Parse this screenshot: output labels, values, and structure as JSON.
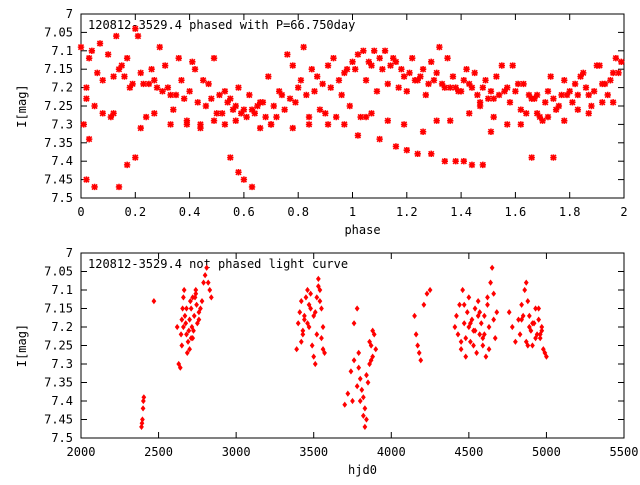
{
  "chart_data": [
    {
      "type": "scatter",
      "title": "120812-3529.4 phased with P=66.750day",
      "xlabel": "phase",
      "ylabel": "I[mag]",
      "xlim": [
        0,
        2
      ],
      "ylim": [
        7.5,
        7
      ],
      "y_inverted": true,
      "xticks": [
        0,
        0.2,
        0.4,
        0.6,
        0.8,
        1,
        1.2,
        1.4,
        1.6,
        1.8,
        2
      ],
      "xtick_labels": [
        "0",
        "0.2",
        "0.4",
        "0.6",
        "0.8",
        "1",
        "1.2",
        "1.4",
        "1.6",
        "1.8",
        "2"
      ],
      "yticks": [
        7,
        7.05,
        7.1,
        7.15,
        7.2,
        7.25,
        7.3,
        7.35,
        7.4,
        7.45,
        7.5
      ],
      "ytick_labels": [
        "7",
        "7.05",
        "7.1",
        "7.15",
        "7.2",
        "7.25",
        "7.3",
        "7.35",
        "7.4",
        "7.45",
        "7.5"
      ],
      "grid": false,
      "marker": "star",
      "color": "#ff0000",
      "series": [
        {
          "x": [
            0.0,
            0.02,
            0.04,
            0.06,
            0.1,
            0.14,
            0.16,
            0.19,
            0.21,
            0.23,
            0.25,
            0.28,
            0.3,
            0.33,
            0.36,
            0.38,
            0.4,
            0.43,
            0.46,
            0.48,
            0.51,
            0.54,
            0.57,
            0.6,
            0.63,
            0.66,
            0.68,
            0.71,
            0.74,
            0.77,
            0.8,
            0.83,
            0.86,
            0.89,
            0.92,
            0.95,
            0.98,
            1.0,
            1.02,
            1.04,
            1.06,
            1.1,
            1.14,
            1.16,
            1.19,
            1.21,
            1.23,
            1.25,
            1.28,
            1.3,
            1.33,
            1.36,
            1.38,
            1.4,
            1.43,
            1.46,
            1.48,
            1.51,
            1.54,
            1.57,
            1.6,
            1.63,
            1.66,
            1.68,
            1.71,
            1.74,
            1.77,
            1.8,
            1.83,
            1.86,
            1.89,
            1.92,
            1.95,
            1.98,
            0.01,
            0.03,
            0.05,
            0.08,
            0.11,
            0.13,
            0.15,
            0.18,
            0.2,
            0.22,
            0.24,
            0.27,
            0.29,
            0.31,
            0.34,
            0.37,
            0.39,
            0.42,
            0.44,
            0.47,
            0.49,
            0.52,
            0.55,
            0.58,
            0.61,
            0.64,
            0.67,
            0.7,
            0.72,
            0.75,
            0.78,
            0.81,
            0.84,
            0.87,
            0.9,
            0.93,
            0.96,
            0.99,
            1.01,
            1.03,
            1.05,
            1.08,
            1.11,
            1.13,
            1.15,
            1.18,
            1.2,
            1.22,
            1.24,
            1.27,
            1.29,
            1.31,
            1.34,
            1.37,
            1.39,
            1.42,
            1.44,
            1.47,
            1.49,
            1.52,
            1.55,
            1.58,
            1.61,
            1.64,
            1.67,
            1.7,
            1.72,
            1.75,
            1.78,
            1.81,
            1.84,
            1.87,
            1.9,
            1.93,
            1.96,
            1.99,
            0.02,
            0.07,
            0.12,
            0.17,
            0.26,
            0.32,
            0.35,
            0.41,
            0.45,
            0.5,
            0.53,
            0.56,
            0.59,
            0.62,
            0.65,
            0.69,
            0.73,
            0.76,
            0.79,
            0.82,
            0.85,
            0.88,
            0.91,
            0.94,
            0.97,
            1.07,
            1.09,
            1.12,
            1.17,
            1.26,
            1.32,
            1.35,
            1.41,
            1.45,
            1.5,
            1.53,
            1.56,
            1.59,
            1.62,
            1.65,
            1.69,
            1.73,
            1.76,
            1.79,
            1.82,
            1.85,
            1.88,
            1.91,
            1.94,
            1.97,
            0.02,
            0.03,
            0.05,
            0.14,
            0.17,
            0.2,
            0.55,
            0.58,
            0.6,
            0.63,
            1.02,
            1.05,
            1.1,
            1.16,
            1.2,
            1.24,
            1.29,
            1.34,
            1.38,
            1.41,
            1.44,
            1.48,
            1.51,
            1.66,
            1.74,
            0.08,
            0.12,
            0.22,
            0.27,
            0.33,
            0.39,
            0.44,
            0.49,
            0.53,
            0.57,
            0.66,
            0.7,
            0.78,
            0.84,
            0.91,
            0.97,
            1.07,
            1.13,
            1.19,
            1.26,
            1.31,
            1.36,
            1.43,
            1.47,
            1.52,
            1.57,
            1.62,
            1.68,
            1.72,
            1.78,
            1.83,
            1.87,
            1.92,
            1.96
          ],
          "y": [
            7.09,
            7.2,
            7.1,
            7.16,
            7.11,
            7.15,
            7.17,
            7.19,
            7.06,
            7.19,
            7.19,
            7.2,
            7.21,
            7.22,
            7.12,
            7.23,
            7.21,
            7.24,
            7.25,
            7.23,
            7.22,
            7.24,
            7.25,
            7.26,
            7.26,
            7.24,
            7.28,
            7.25,
            7.22,
            7.23,
            7.2,
            7.22,
            7.21,
            7.19,
            7.2,
            7.18,
            7.15,
            7.13,
            7.11,
            7.1,
            7.13,
            7.12,
            7.14,
            7.13,
            7.17,
            7.16,
            7.18,
            7.17,
            7.19,
            7.18,
            7.19,
            7.2,
            7.2,
            7.21,
            7.19,
            7.22,
            7.2,
            7.21,
            7.22,
            7.2,
            7.21,
            7.19,
            7.23,
            7.22,
            7.24,
            7.23,
            7.22,
            7.21,
            7.22,
            7.2,
            7.21,
            7.19,
            7.18,
            7.16,
            7.3,
            7.12,
            7.25,
            7.18,
            7.28,
            7.06,
            7.14,
            7.2,
            7.04,
            7.16,
            7.28,
            7.18,
            7.09,
            7.14,
            7.26,
            7.18,
            7.29,
            7.15,
            7.31,
            7.19,
            7.12,
            7.27,
            7.23,
            7.2,
            7.28,
            7.27,
            7.24,
            7.3,
            7.28,
            7.26,
            7.14,
            7.18,
            7.28,
            7.17,
            7.27,
            7.12,
            7.22,
            7.25,
            7.15,
            7.28,
            7.18,
            7.1,
            7.15,
            7.19,
            7.12,
            7.15,
            7.21,
            7.12,
            7.18,
            7.22,
            7.13,
            7.16,
            7.2,
            7.17,
            7.21,
            7.15,
            7.2,
            7.24,
            7.18,
            7.23,
            7.14,
            7.24,
            7.19,
            7.27,
            7.23,
            7.29,
            7.21,
            7.26,
            7.18,
            7.24,
            7.17,
            7.22,
            7.14,
            7.19,
            7.16,
            7.13,
            7.23,
            7.08,
            7.17,
            7.12,
            7.15,
            7.2,
            7.22,
            7.13,
            7.18,
            7.27,
            7.21,
            7.26,
            7.27,
            7.22,
            7.25,
            7.17,
            7.21,
            7.11,
            7.24,
            7.09,
            7.15,
            7.26,
            7.14,
            7.28,
            7.16,
            7.14,
            7.21,
            7.1,
            7.2,
            7.15,
            7.09,
            7.12,
            7.18,
            7.16,
            7.23,
            7.17,
            7.21,
            7.14,
            7.26,
            7.22,
            7.28,
            7.17,
            7.25,
            7.22,
            7.19,
            7.16,
            7.25,
            7.14,
            7.22,
            7.12,
            7.45,
            7.34,
            7.47,
            7.47,
            7.41,
            7.39,
            7.39,
            7.43,
            7.45,
            7.47,
            7.33,
            7.28,
            7.34,
            7.36,
            7.37,
            7.38,
            7.38,
            7.4,
            7.4,
            7.4,
            7.41,
            7.41,
            7.32,
            7.39,
            7.39,
            7.27,
            7.27,
            7.31,
            7.27,
            7.3,
            7.3,
            7.3,
            7.29,
            7.3,
            7.29,
            7.31,
            7.3,
            7.31,
            7.3,
            7.3,
            7.3,
            7.27,
            7.29,
            7.3,
            7.32,
            7.29,
            7.29,
            7.27,
            7.25,
            7.28,
            7.3,
            7.3,
            7.27,
            7.28,
            7.29,
            7.26,
            7.27,
            7.24,
            7.24
          ]
        }
      ]
    },
    {
      "type": "scatter",
      "title": "120812-3529.4 not phased light curve",
      "xlabel": "hjd0",
      "ylabel": "I[mag]",
      "xlim": [
        2000,
        5500
      ],
      "ylim": [
        7.5,
        7
      ],
      "y_inverted": true,
      "xticks": [
        2000,
        2500,
        3000,
        3500,
        4000,
        4500,
        5000,
        5500
      ],
      "xtick_labels": [
        "2000",
        "2500",
        "3000",
        "3500",
        "4000",
        "4500",
        "5000",
        "5500"
      ],
      "yticks": [
        7,
        7.05,
        7.1,
        7.15,
        7.2,
        7.25,
        7.3,
        7.35,
        7.4,
        7.45,
        7.5
      ],
      "ytick_labels": [
        "7",
        "7.05",
        "7.1",
        "7.15",
        "7.2",
        "7.25",
        "7.3",
        "7.35",
        "7.4",
        "7.45",
        "7.5"
      ],
      "grid": false,
      "marker": "diamond",
      "color": "#ff0000",
      "series": [
        {
          "x": [
            2390,
            2393,
            2396,
            2400,
            2402,
            2405,
            2470,
            2620,
            2630,
            2640,
            2645,
            2650,
            2655,
            2660,
            2665,
            2670,
            2675,
            2680,
            2685,
            2690,
            2695,
            2700,
            2705,
            2710,
            2715,
            2720,
            2725,
            2730,
            2735,
            2740,
            2745,
            2750,
            2760,
            2780,
            2790,
            2800,
            2810,
            2820,
            2830,
            2840,
            2650,
            2660,
            2680,
            2700,
            2710,
            2720,
            2740,
            2760,
            2770,
            3390,
            3400,
            3410,
            3420,
            3430,
            3440,
            3450,
            3460,
            3470,
            3480,
            3490,
            3500,
            3510,
            3520,
            3530,
            3540,
            3550,
            3560,
            3570,
            3420,
            3440,
            3460,
            3480,
            3500,
            3520,
            3540,
            3560,
            3430,
            3470,
            3510,
            3530,
            3550,
            3700,
            3720,
            3740,
            3760,
            3780,
            3790,
            3800,
            3810,
            3820,
            3830,
            3840,
            3850,
            3860,
            3870,
            3880,
            3890,
            3900,
            3760,
            3780,
            3800,
            3820,
            3840,
            3860,
            3880,
            3750,
            3790,
            3830,
            3870,
            4150,
            4160,
            4170,
            4180,
            4190,
            4210,
            4230,
            4250,
            4410,
            4420,
            4430,
            4440,
            4450,
            4460,
            4470,
            4480,
            4490,
            4500,
            4510,
            4520,
            4530,
            4540,
            4550,
            4560,
            4570,
            4580,
            4590,
            4600,
            4610,
            4620,
            4630,
            4640,
            4650,
            4660,
            4670,
            4680,
            4450,
            4480,
            4510,
            4540,
            4570,
            4600,
            4630,
            4660,
            4470,
            4500,
            4530,
            4560,
            4590,
            4620,
            4760,
            4780,
            4800,
            4820,
            4840,
            4860,
            4870,
            4880,
            4890,
            4900,
            4910,
            4920,
            4930,
            4940,
            4950,
            4960,
            4970,
            4980,
            4990,
            5000,
            4830,
            4850,
            4870,
            4890,
            4910,
            4930,
            4950,
            4970,
            4840,
            4880,
            4920,
            4960
          ],
          "y": [
            7.47,
            7.46,
            7.45,
            7.42,
            7.4,
            7.39,
            7.13,
            7.2,
            7.3,
            7.31,
            7.22,
            7.18,
            7.15,
            7.12,
            7.1,
            7.17,
            7.19,
            7.22,
            7.27,
            7.24,
            7.21,
            7.18,
            7.13,
            7.15,
            7.2,
            7.23,
            7.21,
            7.17,
            7.12,
            7.1,
            7.14,
            7.19,
            7.16,
            7.13,
            7.08,
            7.06,
            7.04,
            7.08,
            7.1,
            7.12,
            7.25,
            7.2,
            7.15,
            7.26,
            7.23,
            7.12,
            7.11,
            7.18,
            7.15,
            7.26,
            7.19,
            7.16,
            7.13,
            7.22,
            7.18,
            7.12,
            7.1,
            7.2,
            7.15,
            7.25,
            7.28,
            7.3,
            7.12,
            7.07,
            7.1,
            7.15,
            7.2,
            7.27,
            7.24,
            7.17,
            7.19,
            7.11,
            7.17,
            7.22,
            7.13,
            7.26,
            7.21,
            7.14,
            7.16,
            7.09,
            7.23,
            7.41,
            7.38,
            7.32,
            7.19,
            7.15,
            7.27,
            7.34,
            7.37,
            7.39,
            7.42,
            7.45,
            7.35,
            7.3,
            7.25,
            7.28,
            7.22,
            7.26,
            7.29,
            7.36,
            7.4,
            7.44,
            7.33,
            7.24,
            7.21,
            7.4,
            7.31,
            7.47,
            7.29,
            7.17,
            7.22,
            7.25,
            7.27,
            7.29,
            7.14,
            7.11,
            7.1,
            7.2,
            7.17,
            7.22,
            7.14,
            7.26,
            7.1,
            7.19,
            7.23,
            7.16,
            7.12,
            7.24,
            7.18,
            7.21,
            7.15,
            7.27,
            7.13,
            7.22,
            7.19,
            7.25,
            7.17,
            7.28,
            7.14,
            7.2,
            7.08,
            7.04,
            7.11,
            7.23,
            7.16,
            7.24,
            7.28,
            7.19,
            7.21,
            7.16,
            7.22,
            7.26,
            7.18,
            7.14,
            7.2,
            7.25,
            7.17,
            7.23,
            7.12,
            7.16,
            7.2,
            7.24,
            7.18,
            7.14,
            7.1,
            7.08,
            7.13,
            7.17,
            7.21,
            7.25,
            7.19,
            7.15,
            7.22,
            7.18,
            7.23,
            7.2,
            7.26,
            7.27,
            7.28,
            7.22,
            7.17,
            7.24,
            7.2,
            7.19,
            7.23,
            7.15,
            7.21,
            7.18,
            7.25,
            7.19,
            7.22
          ]
        }
      ]
    }
  ]
}
